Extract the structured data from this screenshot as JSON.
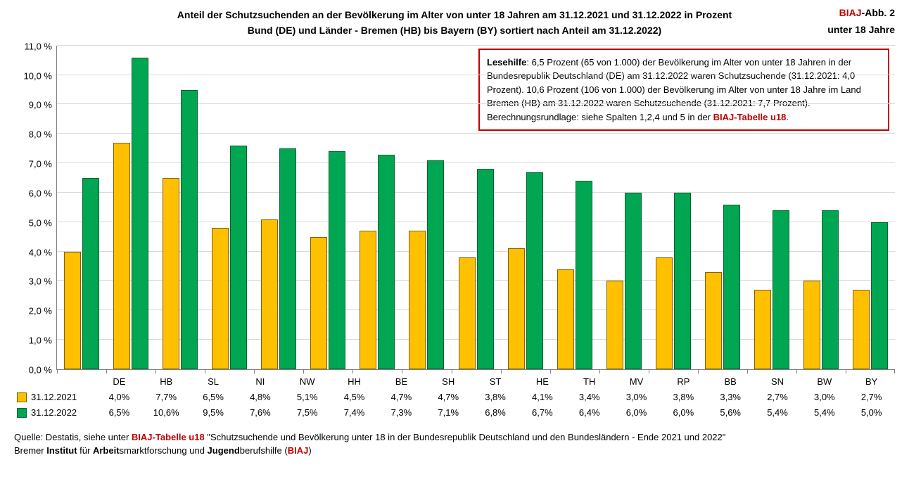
{
  "title": {
    "line1": "Anteil der Schutzsuchenden an der Bevölkerung im Alter von unter 18 Jahren am 31.12.2021 und 31.12.2022 in Prozent",
    "line2": "Bund (DE) und Länder - Bremen (HB) bis Bayern (BY) sortiert nach Anteil am 31.12.2022)",
    "right_top_prefix": "BIAJ",
    "right_top_suffix": "-Abb. 2",
    "right_bottom": "unter 18 Jahre"
  },
  "chart": {
    "type": "bar",
    "y_max": 11.0,
    "y_step": 1.0,
    "y_tick_suffix": " %",
    "y_tick_decimal": 1,
    "bar_colors": {
      "s1": "#ffc000",
      "s2": "#00a651"
    },
    "bar_borders": {
      "s1": "#806000",
      "s2": "#00632f"
    },
    "grid_color": "#d9d9d9",
    "axis_color": "#808080",
    "categories": [
      "DE",
      "HB",
      "SL",
      "NI",
      "NW",
      "HH",
      "BE",
      "SH",
      "ST",
      "HE",
      "TH",
      "MV",
      "RP",
      "BB",
      "SN",
      "BW",
      "BY"
    ],
    "series": [
      {
        "name": "31.12.2021",
        "color_key": "s1",
        "values": [
          4.0,
          7.7,
          6.5,
          4.8,
          5.1,
          4.5,
          4.7,
          4.7,
          3.8,
          4.1,
          3.4,
          3.0,
          3.8,
          3.3,
          2.7,
          3.0,
          2.7
        ],
        "labels": [
          "4,0%",
          "7,7%",
          "6,5%",
          "4,8%",
          "5,1%",
          "4,5%",
          "4,7%",
          "4,7%",
          "3,8%",
          "4,1%",
          "3,4%",
          "3,0%",
          "3,8%",
          "3,3%",
          "2,7%",
          "3,0%",
          "2,7%"
        ]
      },
      {
        "name": "31.12.2022",
        "color_key": "s2",
        "values": [
          6.5,
          10.6,
          9.5,
          7.6,
          7.5,
          7.4,
          7.3,
          7.1,
          6.8,
          6.7,
          6.4,
          6.0,
          6.0,
          5.6,
          5.4,
          5.4,
          5.0
        ],
        "labels": [
          "6,5%",
          "10,6%",
          "9,5%",
          "7,6%",
          "7,5%",
          "7,4%",
          "7,3%",
          "7,1%",
          "6,8%",
          "6,7%",
          "6,4%",
          "6,0%",
          "6,0%",
          "5,6%",
          "5,4%",
          "5,4%",
          "5,0%"
        ]
      }
    ]
  },
  "info_box": {
    "lead": "Lesehilfe",
    "body_a": ": 6,5 Prozent (65 von 1.000) der Bevölkerung im Alter von unter 18 Jahren in der Bundesrepublik Deutschland (DE) am 31.12.2022 waren Schutzsuchende (31.12.2021: 4,0 Prozent). 10,6 Prozent (106 von 1.000) der Bevölkerung im Alter von unter 18 Jahre im Land Bremen (HB) am 31.12.2022 waren Schutzsuchende (31.12.2021: 7,7 Prozent).",
    "body_b": "Berechnungsrundlage: siehe Spalten 1,2,4 und 5 in der ",
    "biaj_ref": "BIAJ-Tabelle u18",
    "body_c": "."
  },
  "source": {
    "line1_a": "Quelle: Destatis, siehe unter ",
    "line1_biaj": "BIAJ-Tabelle u18",
    "line1_b": " \"Schutzsuchende und Bevölkerung unter 18 in der Bundesrepublik Deutschland und den Bundesländern - Ende 2021 und 2022\"",
    "line2_a": "Bremer ",
    "line2_b": "Institut",
    "line2_c": " für ",
    "line2_d": "Arbeit",
    "line2_e": "smarktforschung und ",
    "line2_f": "Jugend",
    "line2_g": "berufshilfe (",
    "line2_biaj": "BIAJ",
    "line2_h": ")"
  }
}
